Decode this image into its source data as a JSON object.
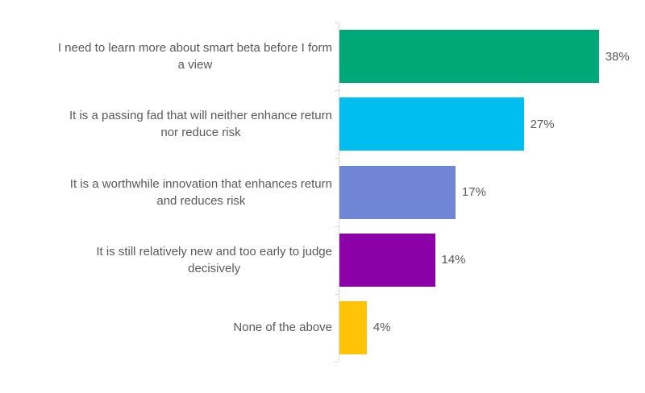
{
  "chart_data": {
    "type": "bar",
    "orientation": "horizontal",
    "title": "",
    "xlabel": "",
    "ylabel": "",
    "xlim": [
      0,
      45
    ],
    "grid": false,
    "legend": false,
    "background": "#FFFFFF",
    "label_color": "#595959",
    "axis_color": "#D9D9D9",
    "categories": [
      "I need to learn more about smart beta before I form\na view",
      "It is a passing fad that will neither enhance return\nnor reduce risk",
      "It is a worthwhile innovation that enhances return\nand reduces risk",
      "It is still relatively new and too early to judge\ndecisively",
      "None of the above"
    ],
    "values": [
      38,
      27,
      17,
      14,
      4
    ],
    "value_labels": [
      "38%",
      "27%",
      "17%",
      "14%",
      "4%"
    ],
    "bar_colors": [
      "#00A878",
      "#00BFF0",
      "#7085D6",
      "#8C00A8",
      "#FFC408"
    ]
  }
}
